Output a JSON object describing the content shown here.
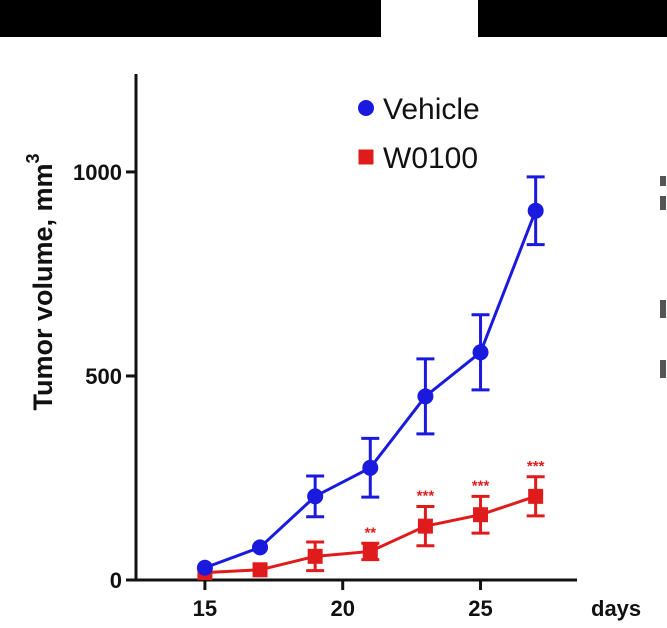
{
  "chart_data": {
    "type": "line",
    "xlabel": "days",
    "ylabel": "Tumor volume, mm",
    "ylabel_superscript": "3",
    "xlim": [
      12.5,
      28.5
    ],
    "ylim": [
      0,
      1240
    ],
    "xticks": [
      15,
      20,
      25
    ],
    "xtick_labels": [
      "15",
      "20",
      "25"
    ],
    "yticks": [
      0,
      500,
      1000
    ],
    "ytick_labels": [
      "0",
      "500",
      "1000"
    ],
    "grid": false,
    "legend_position": "top-center",
    "series": [
      {
        "name": "Vehicle",
        "color": "#1a1adf",
        "marker": "circle",
        "x": [
          15,
          17,
          19,
          21,
          23,
          25,
          27
        ],
        "y": [
          30,
          80,
          205,
          275,
          450,
          558,
          905
        ],
        "err": [
          0,
          0,
          50,
          72,
          92,
          92,
          83
        ]
      },
      {
        "name": "W0100",
        "color": "#e01b1b",
        "marker": "square",
        "x": [
          15,
          17,
          19,
          21,
          23,
          25,
          27
        ],
        "y": [
          18,
          25,
          58,
          70,
          132,
          160,
          205
        ],
        "err": [
          0,
          0,
          35,
          20,
          48,
          45,
          48
        ],
        "annotations": [
          "",
          "",
          "",
          "**",
          "***",
          "***",
          "***"
        ]
      }
    ]
  }
}
